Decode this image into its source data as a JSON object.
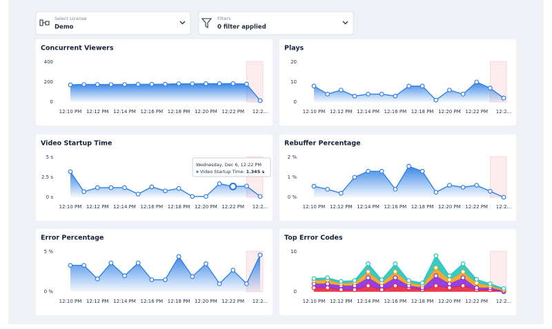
{
  "filters": [
    {
      "label": "Select License",
      "value": "Demo"
    },
    {
      "label": "Filters",
      "value": "0 filter applied"
    }
  ],
  "tooltip": {
    "title": "Wednesday, Dec 6, 12:22 PM",
    "label": "Video Startup Time:",
    "value": "1.345 s"
  },
  "chart_data": [
    {
      "type": "area",
      "title": "Concurrent Viewers",
      "categories": [
        "12:10 PM",
        null,
        "12:12 PM",
        null,
        "12:14 PM",
        null,
        "12:16 PM",
        null,
        "12:18 PM",
        null,
        "12:20 PM",
        null,
        "12:22 PM",
        null,
        "12:2..."
      ],
      "series": [
        {
          "color": "#2f7fe6",
          "values": [
            172,
            176,
            176,
            175,
            176,
            177,
            178,
            179,
            183,
            183,
            184,
            184,
            185,
            180,
            15
          ]
        }
      ],
      "ylim": [
        0,
        400
      ],
      "yticks": [
        0,
        200,
        400
      ],
      "grid": false
    },
    {
      "type": "area",
      "title": "Plays",
      "categories": [
        "12:10 PM",
        null,
        "12:12 PM",
        null,
        "12:14 PM",
        null,
        "12:16 PM",
        null,
        "12:18 PM",
        null,
        "12:20 PM",
        null,
        "12:22 PM",
        null,
        "12:2..."
      ],
      "series": [
        {
          "color": "#2f7fe6",
          "values": [
            8,
            4,
            6,
            3,
            4,
            4,
            3,
            8,
            8,
            1,
            6,
            4,
            10,
            7,
            2
          ]
        }
      ],
      "ylim": [
        0,
        20
      ],
      "yticks": [
        0,
        10,
        20
      ],
      "grid": false
    },
    {
      "type": "area",
      "title": "Video Startup Time",
      "categories": [
        "12:10 PM",
        null,
        "12:12 PM",
        null,
        "12:14 PM",
        null,
        "12:16 PM",
        null,
        "12:18 PM",
        null,
        "12:20 PM",
        null,
        "12:22 PM",
        null,
        "12:2..."
      ],
      "series": [
        {
          "color": "#2f7fe6",
          "values": [
            3.2,
            0.7,
            1.2,
            1.2,
            1.2,
            0.4,
            1.3,
            0.8,
            1.1,
            0.1,
            0.1,
            1.7,
            1.345,
            1.4,
            0.1
          ]
        }
      ],
      "ylim": [
        0,
        5
      ],
      "yticks": [
        {
          "value": 0,
          "label": "0 s"
        },
        {
          "value": 2.5,
          "label": "2.5 s"
        },
        {
          "value": 5,
          "label": "5 s"
        }
      ],
      "grid": false
    },
    {
      "type": "area",
      "title": "Rebuffer Percentage",
      "categories": [
        "12:10 PM",
        null,
        "12:12 PM",
        null,
        "12:14 PM",
        null,
        "12:16 PM",
        null,
        "12:18 PM",
        null,
        "12:20 PM",
        null,
        "12:22 PM",
        null,
        "12:2..."
      ],
      "series": [
        {
          "color": "#2f7fe6",
          "values": [
            0.55,
            0.4,
            0.2,
            1.0,
            1.3,
            1.3,
            0.4,
            1.55,
            1.3,
            0.25,
            0.6,
            0.5,
            0.6,
            0.3,
            0
          ]
        }
      ],
      "ylim": [
        0,
        2
      ],
      "yticks": [
        {
          "value": 0,
          "label": "0 %"
        },
        {
          "value": 1,
          "label": "1 %"
        },
        {
          "value": 2,
          "label": "2 %"
        }
      ],
      "grid": false
    },
    {
      "type": "area",
      "title": "Error Percentage",
      "categories": [
        "12:10 PM",
        null,
        "12:12 PM",
        null,
        "12:14 PM",
        null,
        "12:16 PM",
        null,
        "12:18 PM",
        null,
        "12:20 PM",
        null,
        "12:22 PM",
        null,
        "12:2..."
      ],
      "series": [
        {
          "color": "#2f7fe6",
          "values": [
            3.3,
            3.3,
            1.6,
            3.6,
            2.0,
            3.6,
            1.5,
            1.5,
            4.4,
            1.9,
            3.5,
            1.0,
            2.7,
            1.0,
            4.6
          ]
        }
      ],
      "ylim": [
        0,
        5
      ],
      "yticks": [
        {
          "value": 0,
          "label": "0 %"
        },
        {
          "value": 5,
          "label": "5 %"
        }
      ],
      "grid": false
    },
    {
      "type": "stacked_area",
      "title": "Top Error Codes",
      "categories": [
        "12:10 PM",
        null,
        "12:12 PM",
        null,
        "12:14 PM",
        null,
        "12:16 PM",
        null,
        "12:18 PM",
        null,
        "12:20 PM",
        null,
        "12:22 PM",
        null,
        "12:2..."
      ],
      "series": [
        {
          "color": "#e8283c",
          "values": [
            1,
            1,
            0.5,
            0.5,
            1.5,
            0.5,
            1.5,
            1,
            0.5,
            1.5,
            1,
            1.5,
            0.5,
            0.5,
            0
          ]
        },
        {
          "color": "#8a2be2",
          "values": [
            1,
            1,
            1,
            1,
            2,
            1,
            2,
            0.5,
            0.5,
            2.5,
            1,
            2,
            0.5,
            0.5,
            0.2
          ]
        },
        {
          "color": "#f0a21e",
          "values": [
            0.8,
            1,
            0.6,
            0.8,
            1.5,
            0.8,
            1.5,
            0.8,
            0.7,
            2,
            1,
            1.5,
            1.2,
            0.5,
            0.3
          ]
        },
        {
          "color": "#23c4c0",
          "values": [
            0.5,
            0.5,
            0.5,
            0.5,
            2,
            0.7,
            2,
            0.5,
            0.5,
            3,
            1,
            2,
            0.9,
            0.5,
            0.3
          ]
        }
      ],
      "ylim": [
        0,
        10
      ],
      "yticks": [
        0,
        10
      ],
      "grid": false
    }
  ]
}
